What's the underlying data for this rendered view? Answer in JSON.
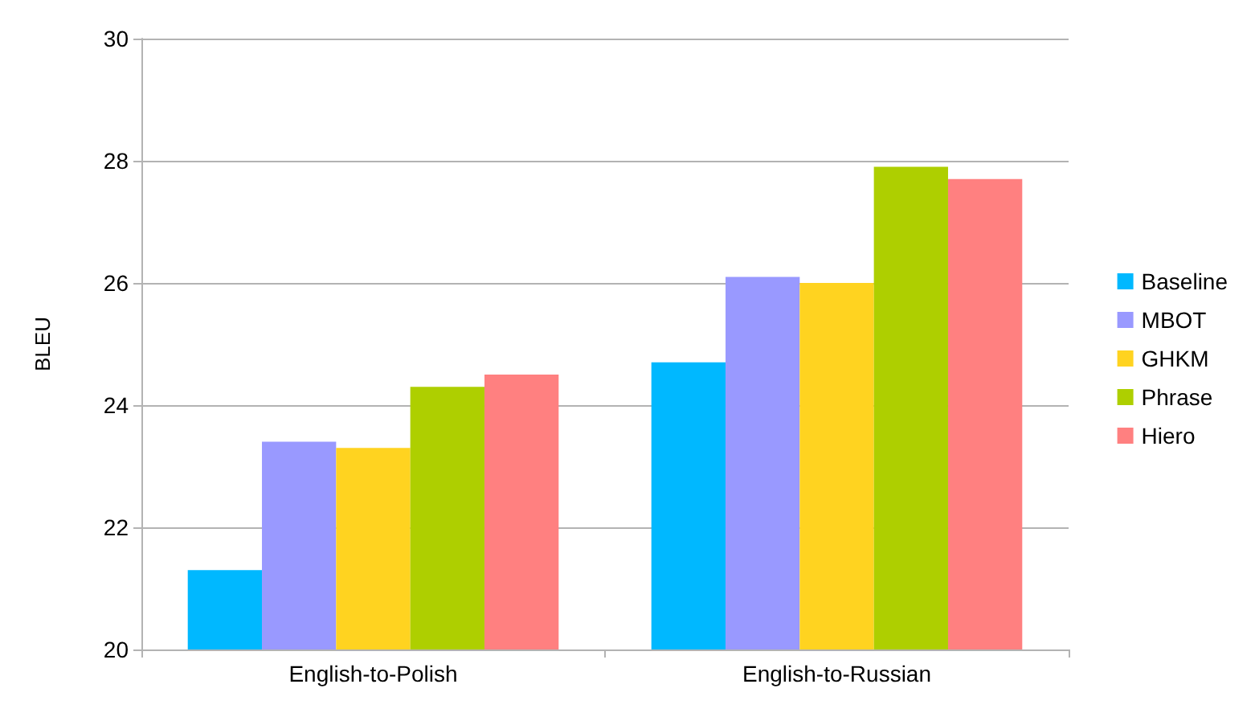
{
  "chart_data": {
    "type": "bar",
    "ylabel": "BLEU",
    "categories": [
      "English-to-Polish",
      "English-to-Russian"
    ],
    "series": [
      {
        "name": "Baseline",
        "color": "#00b8ff",
        "values": [
          21.3,
          24.7
        ]
      },
      {
        "name": "MBOT",
        "color": "#9999ff",
        "values": [
          23.4,
          26.1
        ]
      },
      {
        "name": "GHKM",
        "color": "#ffd320",
        "values": [
          23.3,
          26.0
        ]
      },
      {
        "name": "Phrase",
        "color": "#aecf00",
        "values": [
          24.3,
          27.9
        ]
      },
      {
        "name": "Hiero",
        "color": "#ff8080",
        "values": [
          24.5,
          27.7
        ]
      }
    ],
    "ylim": [
      20,
      30
    ],
    "yticks": [
      20,
      22,
      24,
      26,
      28,
      30
    ],
    "grid": "y",
    "legend": "right"
  }
}
